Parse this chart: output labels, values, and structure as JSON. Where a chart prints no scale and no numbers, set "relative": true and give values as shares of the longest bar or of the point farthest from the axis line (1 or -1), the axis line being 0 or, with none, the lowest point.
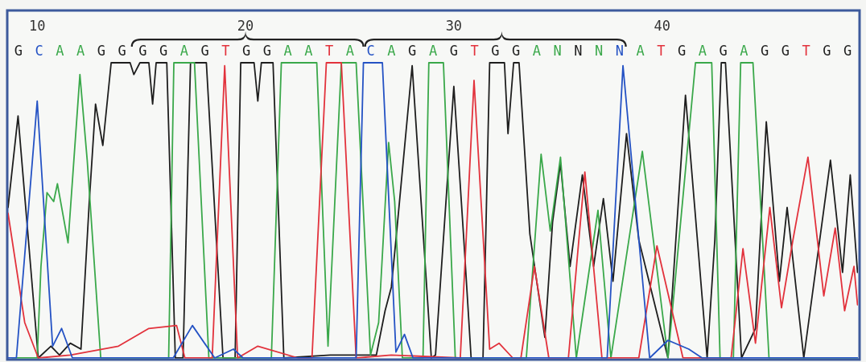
{
  "chart_data": {
    "type": "line",
    "relative": true,
    "xlim": [
      8.6,
      49.4
    ],
    "xticks": [
      10,
      20,
      30,
      40
    ],
    "annotations": [
      "G C A A G G G G A G T G G A A T A C A G A G T G G A N N N N A T G A G A G G T G G"
    ],
    "series": [
      {
        "color": "#1e1e1e",
        "x": [
          8.6,
          9.08,
          10.05,
          10.66,
          11.07,
          11.59,
          12.1,
          12.5,
          12.8,
          13.15,
          13.55,
          14.46,
          14.64,
          14.93,
          15.36,
          15.54,
          15.71,
          16.22,
          16.63,
          17,
          17.36,
          18.12,
          18.92,
          19.5,
          19.77,
          20.41,
          20.59,
          20.76,
          21.32,
          21.84,
          24.07,
          26.28,
          26.7,
          27,
          27.22,
          28,
          28.92,
          29.12,
          30,
          30.48,
          30.83,
          31.4,
          31.72,
          32.43,
          32.6,
          32.87,
          33.13,
          33.65,
          34.37,
          34.74,
          35.12,
          35.58,
          36.17,
          36.71,
          37.18,
          37.64,
          38.29,
          38.88,
          40.28,
          41.12,
          42.16,
          42.53,
          42.84,
          43.04,
          43.81,
          44.48,
          45,
          45.63,
          46,
          46.8,
          48.08,
          48.66,
          49.03,
          49.38
        ],
        "values": [
          0.51,
          0.82,
          0,
          0.04,
          0.01,
          0.05,
          0.03,
          0.53,
          0.86,
          0.72,
          1,
          1,
          0.96,
          1,
          1,
          0.86,
          1,
          1,
          0,
          0,
          1,
          1,
          0,
          0,
          1,
          1,
          0.87,
          1,
          1,
          0,
          0.01,
          0.01,
          0.16,
          0.24,
          0.4,
          0.99,
          0,
          0.01,
          0.92,
          0.4,
          0,
          0,
          1,
          1,
          0.76,
          1,
          1,
          0.42,
          0.07,
          0.46,
          0.66,
          0.31,
          0.62,
          0.31,
          0.54,
          0.26,
          0.76,
          0.4,
          0,
          0.89,
          0,
          0.4,
          1,
          1,
          0,
          0.1,
          0.8,
          0.26,
          0.51,
          0,
          0.67,
          0.29,
          0.62,
          0.29
        ]
      },
      {
        "color": "#3aa84a",
        "x": [
          8.8,
          10,
          10.18,
          10.47,
          10.79,
          10.97,
          11.48,
          11.76,
          12.05,
          12.4,
          13.05,
          16.31,
          16.56,
          17.55,
          18.24,
          21.24,
          21.72,
          23.42,
          23.96,
          24.6,
          25.31,
          26,
          26.39,
          26.87,
          27.16,
          27.53,
          28.52,
          28.8,
          29.5,
          30.07,
          33.48,
          34.19,
          34.63,
          35.12,
          35.88,
          36.92,
          37.54,
          39.05,
          40.28,
          41.6,
          42.38,
          42.78,
          43.42,
          43.77,
          44.36,
          45.13,
          49.38
        ],
        "values": [
          0,
          0,
          0.31,
          0.56,
          0.53,
          0.59,
          0.39,
          0.67,
          0.96,
          0.67,
          0,
          0,
          1,
          1,
          0,
          0,
          1,
          1,
          0.04,
          1,
          1,
          0.01,
          0.12,
          0.73,
          0.53,
          0,
          0,
          1,
          1,
          0,
          0,
          0.69,
          0.43,
          0.68,
          0,
          0.5,
          0,
          0.7,
          0,
          1,
          1,
          0,
          0,
          1,
          1,
          0,
          0
        ]
      },
      {
        "color": "#e2323c",
        "x": [
          8.6,
          9.4,
          10.05,
          11.59,
          13.9,
          15.36,
          16.69,
          17.09,
          18.4,
          19,
          19.62,
          20.59,
          22.52,
          23.19,
          23.88,
          24.6,
          25.31,
          27,
          30.31,
          30.97,
          31.72,
          32.17,
          32.83,
          33.22,
          33.87,
          34.56,
          35.5,
          36.29,
          37.11,
          38.88,
          39.75,
          41,
          43.31,
          43.88,
          44.48,
          45.17,
          45.73,
          46.28,
          47,
          47.76,
          48.31,
          48.76,
          49.21,
          49.38
        ],
        "values": [
          0.49,
          0.12,
          0,
          0.01,
          0.04,
          0.1,
          0.11,
          0,
          0,
          0.99,
          0,
          0.04,
          0,
          0,
          1,
          1,
          0,
          0.01,
          0,
          0.94,
          0.03,
          0.05,
          0,
          0,
          0.31,
          0,
          0,
          0.63,
          0,
          0,
          0.38,
          0,
          0,
          0.37,
          0.05,
          0.51,
          0.17,
          0.4,
          0.68,
          0.21,
          0.44,
          0.16,
          0.31,
          0.18
        ]
      },
      {
        "color": "#2452c4",
        "x": [
          8.6,
          9,
          10,
          10.74,
          11.17,
          11.69,
          16.53,
          17.45,
          18.52,
          19.42,
          19.88,
          25.31,
          25.66,
          26.57,
          27.22,
          27.63,
          28.04,
          37.36,
          38.12,
          39.4,
          40.28,
          41.28,
          41.92,
          49.38
        ],
        "values": [
          0,
          0,
          0.87,
          0.04,
          0.1,
          0,
          0,
          0.11,
          0,
          0.03,
          0,
          0,
          1,
          1,
          0.02,
          0.08,
          0,
          0,
          0.99,
          0,
          0.06,
          0.03,
          0,
          0
        ]
      }
    ]
  }
}
